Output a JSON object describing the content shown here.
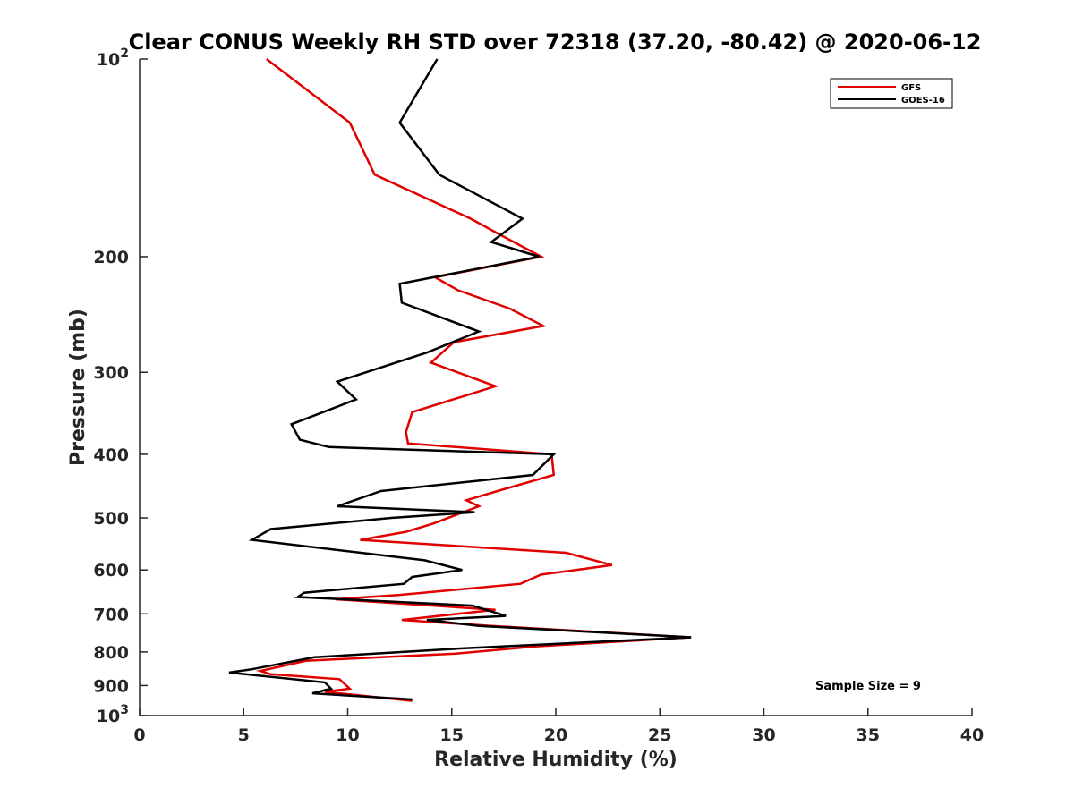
{
  "chart_data": {
    "type": "line",
    "title": "Clear CONUS Weekly RH STD over 72318 (37.20, -80.42) @ 2020-06-12",
    "xlabel": "Relative Humidity (%)",
    "ylabel": "Pressure (mb)",
    "xlim": [
      0,
      40
    ],
    "ylim": [
      100,
      1000
    ],
    "y_scale": "log",
    "y_reversed": true,
    "x_ticks": [
      0,
      5,
      10,
      15,
      20,
      25,
      30,
      35,
      40
    ],
    "y_ticks": [
      {
        "value": 100,
        "base": "10",
        "exp": "2"
      },
      {
        "value": 200,
        "label": "200"
      },
      {
        "value": 300,
        "label": "300"
      },
      {
        "value": 400,
        "label": "400"
      },
      {
        "value": 500,
        "label": "500"
      },
      {
        "value": 600,
        "label": "600"
      },
      {
        "value": 700,
        "label": "700"
      },
      {
        "value": 800,
        "label": "800"
      },
      {
        "value": 900,
        "label": "900"
      },
      {
        "value": 1000,
        "base": "10",
        "exp": "3"
      }
    ],
    "grid": false,
    "legend_position": "top-right",
    "annotation": "Sample Size = 9",
    "series": [
      {
        "name": "GFS",
        "color": "#e00000",
        "points": [
          [
            6.1,
            100
          ],
          [
            10.1,
            125
          ],
          [
            11.3,
            150
          ],
          [
            15.9,
            175
          ],
          [
            17.3,
            185
          ],
          [
            19.3,
            200
          ],
          [
            14.2,
            215
          ],
          [
            15.3,
            225
          ],
          [
            17.8,
            240
          ],
          [
            19.4,
            255
          ],
          [
            15.1,
            270
          ],
          [
            14.0,
            290
          ],
          [
            17.1,
            315
          ],
          [
            13.1,
            345
          ],
          [
            12.8,
            370
          ],
          [
            12.9,
            385
          ],
          [
            19.8,
            400
          ],
          [
            19.9,
            430
          ],
          [
            17.2,
            455
          ],
          [
            15.7,
            470
          ],
          [
            16.3,
            480
          ],
          [
            14.1,
            510
          ],
          [
            12.8,
            525
          ],
          [
            10.6,
            540
          ],
          [
            20.5,
            565
          ],
          [
            22.7,
            590
          ],
          [
            19.3,
            610
          ],
          [
            18.3,
            630
          ],
          [
            12.5,
            655
          ],
          [
            9.4,
            665
          ],
          [
            17.1,
            690
          ],
          [
            12.6,
            715
          ],
          [
            16.9,
            730
          ],
          [
            26.5,
            760
          ],
          [
            19.0,
            785
          ],
          [
            15.1,
            805
          ],
          [
            8.0,
            825
          ],
          [
            5.8,
            855
          ],
          [
            6.3,
            865
          ],
          [
            9.6,
            880
          ],
          [
            10.1,
            910
          ],
          [
            8.9,
            920
          ],
          [
            13.1,
            950
          ]
        ]
      },
      {
        "name": "GOES-16",
        "color": "#000000",
        "points": [
          [
            14.3,
            100
          ],
          [
            12.5,
            125
          ],
          [
            14.4,
            150
          ],
          [
            18.4,
            175
          ],
          [
            16.9,
            190
          ],
          [
            19.2,
            200
          ],
          [
            12.5,
            220
          ],
          [
            12.6,
            235
          ],
          [
            16.3,
            260
          ],
          [
            13.8,
            280
          ],
          [
            9.5,
            310
          ],
          [
            10.4,
            330
          ],
          [
            7.3,
            360
          ],
          [
            7.7,
            380
          ],
          [
            9.1,
            390
          ],
          [
            19.9,
            400
          ],
          [
            18.9,
            430
          ],
          [
            11.6,
            455
          ],
          [
            9.5,
            480
          ],
          [
            16.1,
            490
          ],
          [
            12.1,
            500
          ],
          [
            6.3,
            520
          ],
          [
            5.4,
            540
          ],
          [
            13.7,
            580
          ],
          [
            15.5,
            600
          ],
          [
            13.1,
            615
          ],
          [
            12.7,
            630
          ],
          [
            7.9,
            650
          ],
          [
            7.6,
            660
          ],
          [
            16.0,
            680
          ],
          [
            17.6,
            705
          ],
          [
            13.8,
            715
          ],
          [
            16.3,
            730
          ],
          [
            26.5,
            760
          ],
          [
            15.5,
            790
          ],
          [
            8.4,
            815
          ],
          [
            5.4,
            850
          ],
          [
            4.3,
            860
          ],
          [
            8.9,
            890
          ],
          [
            9.2,
            910
          ],
          [
            8.3,
            925
          ],
          [
            13.1,
            945
          ]
        ]
      }
    ]
  }
}
